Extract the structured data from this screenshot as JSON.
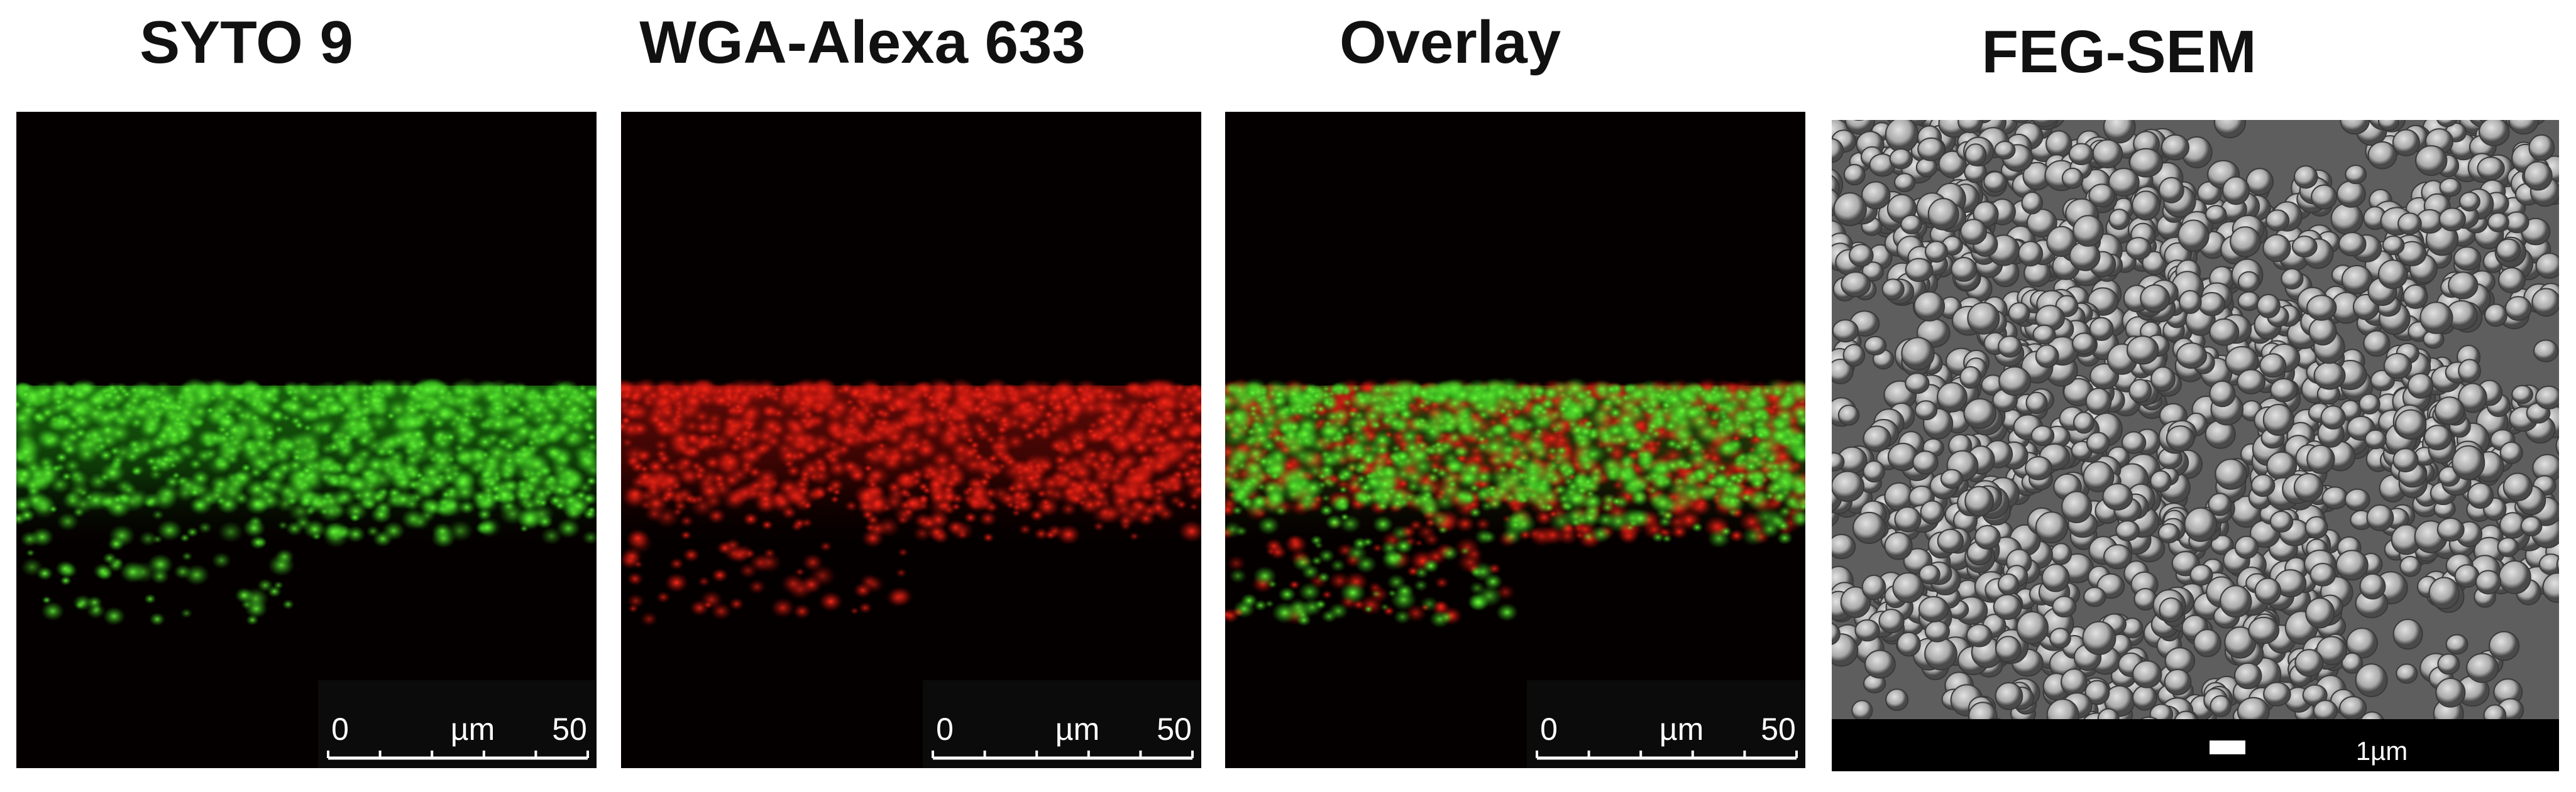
{
  "panels": [
    {
      "title": "SYTO 9",
      "scale": [
        "0",
        "µm",
        "50"
      ]
    },
    {
      "title": "WGA-Alexa 633",
      "scale": [
        "0",
        "µm",
        "50"
      ]
    },
    {
      "title": "Overlay",
      "scale": [
        "0",
        "µm",
        "50"
      ]
    },
    {
      "title": "FEG-SEM",
      "scale": [
        "1µm"
      ]
    }
  ]
}
